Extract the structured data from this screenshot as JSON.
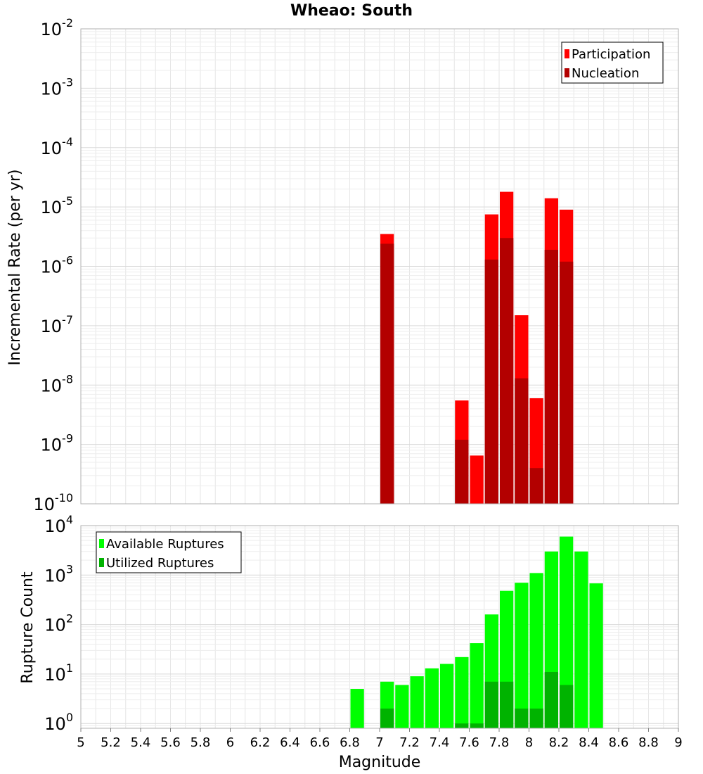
{
  "chart_data": [
    {
      "type": "bar",
      "title": "Wheao: South",
      "ylabel": "Incremental Rate (per yr)",
      "xlabel": "",
      "yscale": "log",
      "ylim": [
        1e-10,
        0.01
      ],
      "xlim": [
        5,
        9
      ],
      "bar_width": 0.1,
      "legend_position": "top-right",
      "grid": true,
      "y_ticks": [
        {
          "base": "10",
          "exp": "-10"
        },
        {
          "base": "10",
          "exp": "-9"
        },
        {
          "base": "10",
          "exp": "-8"
        },
        {
          "base": "10",
          "exp": "-7"
        },
        {
          "base": "10",
          "exp": "-6"
        },
        {
          "base": "10",
          "exp": "-5"
        },
        {
          "base": "10",
          "exp": "-4"
        },
        {
          "base": "10",
          "exp": "-3"
        },
        {
          "base": "10",
          "exp": "-2"
        }
      ],
      "series": [
        {
          "name": "Participation",
          "color": "#ff0000",
          "x": [
            7.05,
            7.55,
            7.65,
            7.75,
            7.85,
            7.95,
            8.05,
            8.15,
            8.25
          ],
          "values": [
            3.5e-06,
            5.5e-09,
            6.5e-10,
            7.5e-06,
            1.8e-05,
            1.5e-07,
            6e-09,
            1.4e-05,
            9e-06
          ]
        },
        {
          "name": "Nucleation",
          "color": "#b30000",
          "x": [
            7.05,
            7.55,
            7.75,
            7.85,
            7.95,
            8.05,
            8.15,
            8.25
          ],
          "values": [
            2.4e-06,
            1.2e-09,
            1.3e-06,
            3e-06,
            1.3e-08,
            4e-10,
            1.9e-06,
            1.2e-06
          ]
        }
      ]
    },
    {
      "type": "bar",
      "title": "",
      "ylabel": "Rupture Count",
      "xlabel": "Magnitude",
      "yscale": "log",
      "ylim": [
        0.8,
        10000
      ],
      "xlim": [
        5,
        9
      ],
      "bar_width": 0.1,
      "legend_position": "top-left",
      "grid": true,
      "x_ticks": [
        "5",
        "5.2",
        "5.4",
        "5.6",
        "5.8",
        "6",
        "6.2",
        "6.4",
        "6.6",
        "6.8",
        "7",
        "7.2",
        "7.4",
        "7.6",
        "7.8",
        "8",
        "8.2",
        "8.4",
        "8.6",
        "8.8",
        "9"
      ],
      "y_ticks": [
        {
          "base": "10",
          "exp": "0"
        },
        {
          "base": "10",
          "exp": "1"
        },
        {
          "base": "10",
          "exp": "2"
        },
        {
          "base": "10",
          "exp": "3"
        },
        {
          "base": "10",
          "exp": "4"
        }
      ],
      "series": [
        {
          "name": "Available Ruptures",
          "color": "#00ff00",
          "x": [
            6.85,
            7.05,
            7.15,
            7.25,
            7.35,
            7.45,
            7.55,
            7.65,
            7.75,
            7.85,
            7.95,
            8.05,
            8.15,
            8.25,
            8.35,
            8.45
          ],
          "values": [
            5,
            7,
            6,
            9,
            13,
            16,
            22,
            42,
            160,
            480,
            700,
            1100,
            3000,
            6000,
            3000,
            680
          ]
        },
        {
          "name": "Utilized Ruptures",
          "color": "#00b300",
          "x": [
            7.05,
            7.55,
            7.65,
            7.75,
            7.85,
            7.95,
            8.05,
            8.15,
            8.25
          ],
          "values": [
            2,
            1,
            1,
            7,
            7,
            2,
            2,
            11,
            6
          ]
        }
      ]
    }
  ]
}
